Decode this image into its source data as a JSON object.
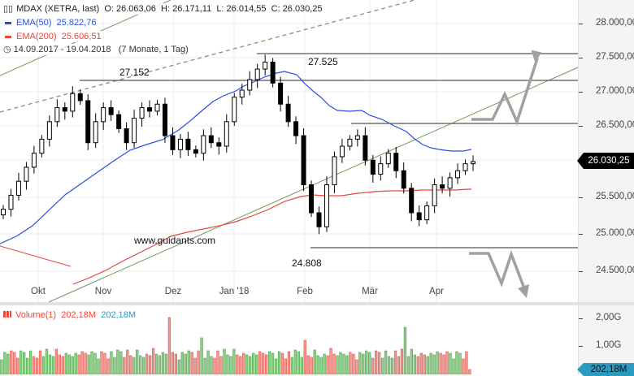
{
  "header": {
    "instrument": "MDAX (XETRA, last)",
    "ohlc": "O: 26.063,06  H: 26.171,11  L: 26.014,55  C: 26.030,25",
    "ema50_label": "EMA(50)",
    "ema50_value": "25.822,76",
    "ema200_label": "EMA(200)",
    "ema200_value": "25.606,51",
    "range": "14.09.2017 - 19.04.2018",
    "duration": "(7 Monate, 1 Tag)"
  },
  "colors": {
    "ema50": "#2a4fe0",
    "ema200": "#e8473c",
    "trendline": "#6e9a5a",
    "volume_up": "#6fbf6a",
    "volume_down": "#f07a72",
    "volume_label": "#e8473c",
    "volume_value2": "#2b9ac0",
    "arrow": "#a0a0a0"
  },
  "annotations": {
    "high1": "27.152",
    "high2": "27.525",
    "low1": "24.808",
    "watermark": "www.guidants.com"
  },
  "price_axis": {
    "labels": [
      "28.000,00",
      "27.500,00",
      "27.000,00",
      "26.500,00",
      "25.500,00",
      "25.000,00",
      "24.500,00"
    ],
    "current_price": "26.030,25"
  },
  "time_axis": {
    "labels": [
      "Okt",
      "Nov",
      "Dez",
      "Jan '18",
      "Feb",
      "Mär",
      "Apr"
    ]
  },
  "volume": {
    "label": "Volume(1)",
    "value1": "202,18M",
    "value2": "202,18M",
    "axis_labels": [
      "2,00G",
      "1,00G"
    ],
    "current": "202,18M"
  },
  "chart_data": {
    "type": "candlestick",
    "title": "MDAX (XETRA, last)",
    "xlabel": "",
    "ylabel": "",
    "ylim": [
      24100,
      28300
    ],
    "grid": true,
    "period": "14.09.2017 - 19.04.2018",
    "categories": [
      "Okt",
      "Nov",
      "Dez",
      "Jan '18",
      "Feb",
      "Mär",
      "Apr"
    ],
    "last_ohlc": {
      "open": 26063.06,
      "high": 26171.11,
      "low": 26014.55,
      "close": 26030.25
    },
    "series": [
      {
        "name": "MDAX close (approx.)",
        "values": [
          25350,
          25550,
          25750,
          25950,
          26150,
          26350,
          26600,
          26800,
          26750,
          27000,
          26900,
          26300,
          26600,
          26800,
          26700,
          26500,
          26300,
          26650,
          26800,
          26750,
          26850,
          26400,
          26200,
          26350,
          26200,
          26150,
          26400,
          26300,
          26250,
          26600,
          26950,
          27050,
          27200,
          27350,
          27450,
          27150,
          26850,
          26600,
          26400,
          25700,
          25300,
          25100,
          25700,
          26100,
          26250,
          26350,
          26400,
          26050,
          25850,
          26000,
          26150,
          25900,
          25650,
          25300,
          25200,
          25400,
          25700,
          25650,
          25800,
          25900,
          26000,
          26030
        ]
      },
      {
        "name": "EMA(50)",
        "values": [
          24950,
          25150,
          25350,
          25550,
          25750,
          25950,
          26100,
          26200,
          26250,
          26300,
          26330,
          26350,
          26400,
          26500,
          26600,
          26680,
          26550,
          26250,
          26080,
          25950,
          25850,
          25820,
          25823
        ]
      },
      {
        "name": "EMA(200)",
        "values": [
          24200,
          24400,
          24600,
          24800,
          25000,
          25150,
          25300,
          25450,
          25500,
          25520,
          25560,
          25590,
          25600,
          25590,
          25580,
          25590,
          25606
        ]
      }
    ],
    "horizontal_levels": [
      27525,
      27152,
      26530,
      24808
    ],
    "volume_series": {
      "name": "Volume(1)",
      "last": "202,18M",
      "ylim": [
        0,
        2400000000
      ]
    }
  }
}
